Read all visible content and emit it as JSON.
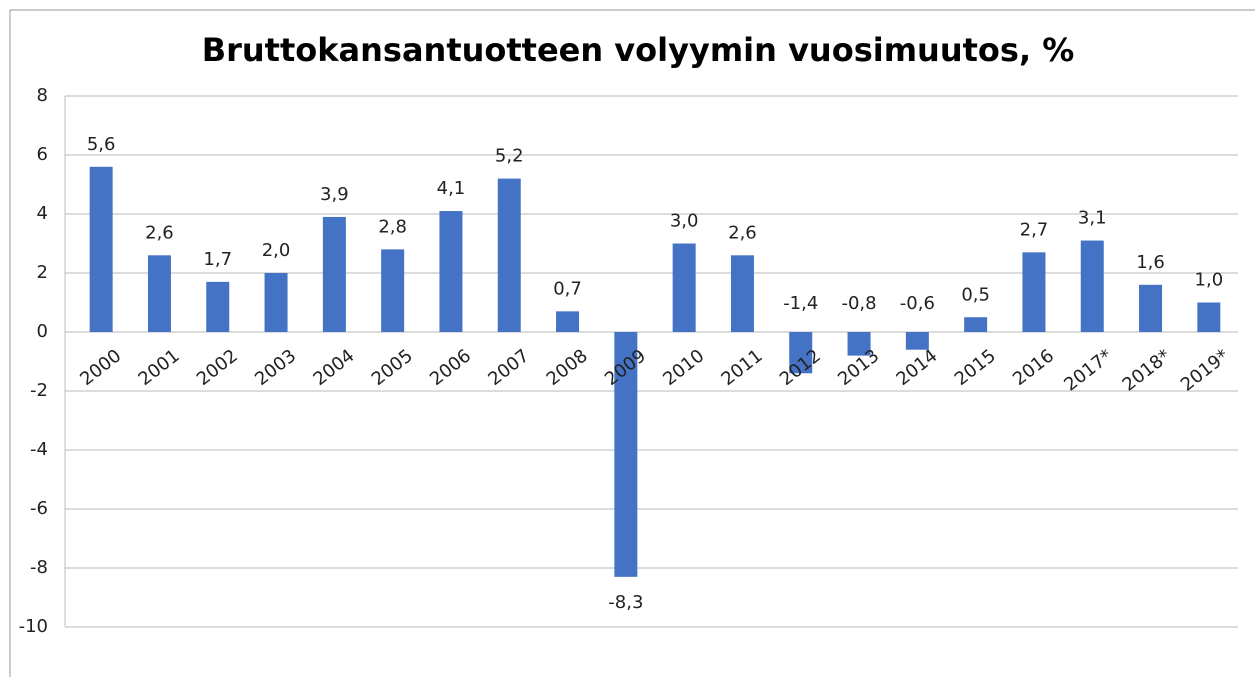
{
  "chart_data": {
    "type": "bar",
    "title": "Bruttokansantuotteen volyymin vuosimuutos, %",
    "categories": [
      "2000",
      "2001",
      "2002",
      "2003",
      "2004",
      "2005",
      "2006",
      "2007",
      "2008",
      "2009",
      "2010",
      "2011",
      "2012",
      "2013",
      "2014",
      "2015",
      "2016",
      "2017*",
      "2018*",
      "2019*"
    ],
    "values": [
      5.6,
      2.6,
      1.7,
      2.0,
      3.9,
      2.8,
      4.1,
      5.2,
      0.7,
      -8.3,
      3.0,
      2.6,
      -1.4,
      -0.8,
      -0.6,
      0.5,
      2.7,
      3.1,
      1.6,
      1.0
    ],
    "value_labels": [
      "5,6",
      "2,6",
      "1,7",
      "2,0",
      "3,9",
      "2,8",
      "4,1",
      "5,2",
      "0,7",
      "-8,3",
      "3,0",
      "2,6",
      "-1,4",
      "-0,8",
      "-0,6",
      "0,5",
      "2,7",
      "3,1",
      "1,6",
      "1,0"
    ],
    "color": "#4472c4",
    "ylim": [
      -10,
      8
    ],
    "yticks": [
      8,
      6,
      4,
      2,
      0,
      -2,
      -4,
      -6,
      -8,
      -10
    ],
    "grid": true
  }
}
